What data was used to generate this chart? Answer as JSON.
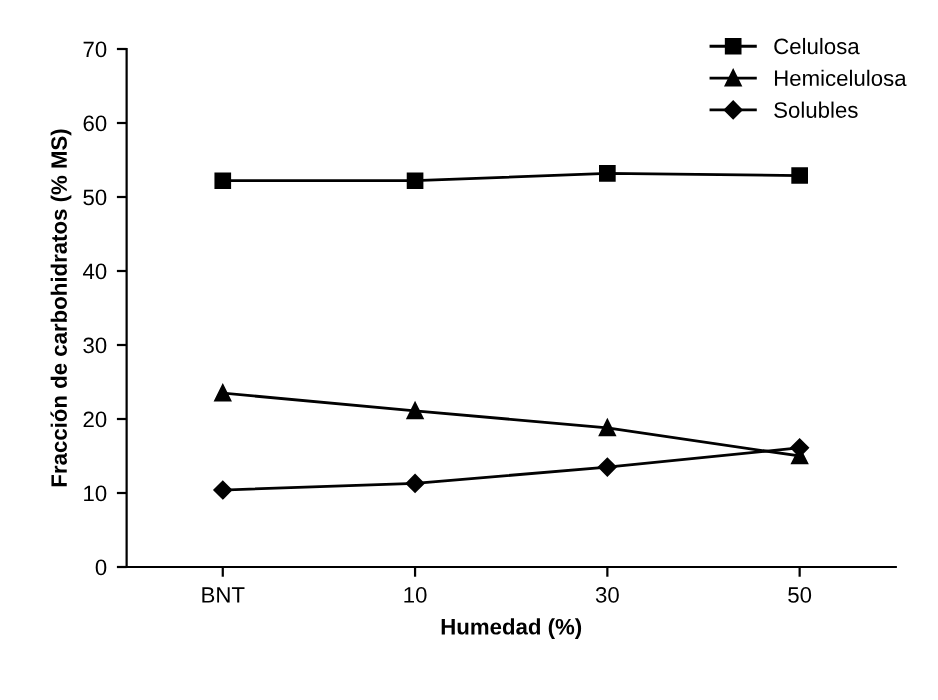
{
  "chart_data": {
    "type": "line",
    "xlabel": "Humedad (%)",
    "ylabel": "Fracción de carbohidratos (% MS)",
    "categories": [
      "BNT",
      "10",
      "30",
      "50"
    ],
    "series": [
      {
        "name": "Celulosa",
        "color": "#000000",
        "marker": "square",
        "values": [
          52.2,
          52.2,
          53.2,
          52.9
        ]
      },
      {
        "name": "Hemicelulosa",
        "color": "#010101",
        "marker": "triangle",
        "values": [
          23.5,
          21.1,
          18.8,
          15.0
        ]
      },
      {
        "name": "Solubles",
        "color": "#020202",
        "marker": "diamond",
        "values": [
          10.4,
          11.3,
          13.5,
          16.1
        ]
      }
    ],
    "ylim": [
      0,
      70
    ],
    "yticks": [
      0,
      10,
      20,
      30,
      40,
      50,
      60,
      70
    ],
    "grid": false,
    "legend": "top right",
    "line_style": "solid"
  }
}
